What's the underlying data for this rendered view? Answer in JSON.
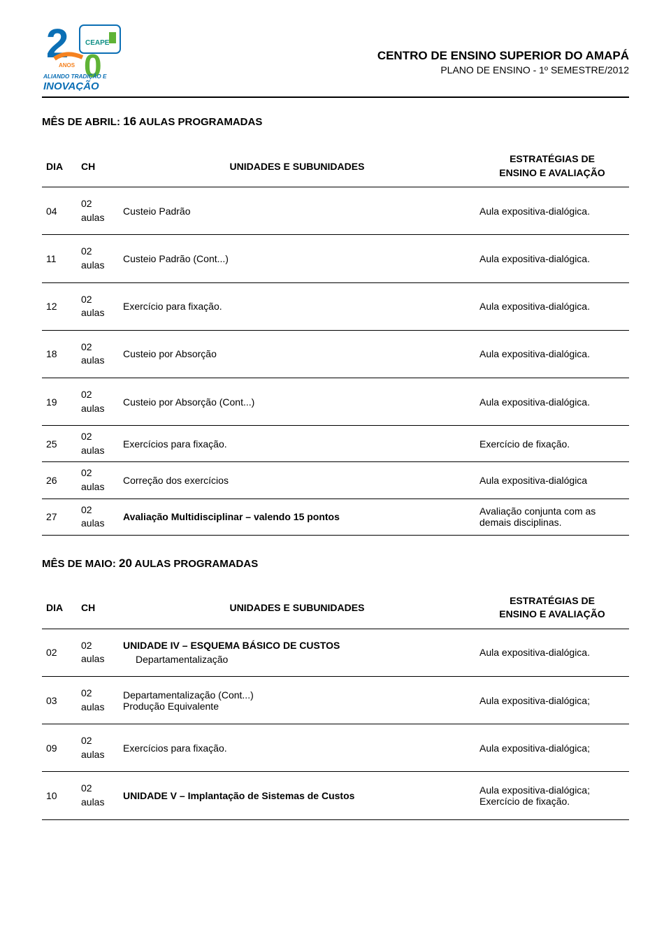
{
  "header": {
    "institution": "CENTRO DE ENSINO SUPERIOR DO AMAPÁ",
    "subtitle": "PLANO DE ENSINO - 1º SEMESTRE/2012"
  },
  "logo": {
    "top_number": "2",
    "right_number": "0",
    "ceape": "CEAPE",
    "years": "ANOS",
    "line1": "ALIANDO TRADIÇÃO E",
    "line2": "INOVAÇÃO",
    "colors": {
      "blue": "#0b6fb5",
      "green": "#5fb336",
      "orange": "#f58220",
      "teal": "#0f8f86",
      "border": "#0b6fb5"
    }
  },
  "section_april": {
    "prefix": "MÊS DE ABRIL: ",
    "num": "16",
    "suffix": " AULAS PROGRAMADAS"
  },
  "section_may": {
    "prefix": "MÊS DE MAIO: ",
    "num": "20",
    "suffix": " AULAS PROGRAMADAS"
  },
  "table_headers": {
    "dia": "DIA",
    "ch": "CH",
    "unit": "UNIDADES E SUBUNIDADES",
    "strat_l1": "ESTRATÉGIAS DE",
    "strat_l2": "ENSINO E AVALIAÇÃO"
  },
  "april_rows": [
    {
      "dia": "04",
      "ch1": "02",
      "ch2": "aulas",
      "unit": "Custeio Padrão",
      "strat": "Aula expositiva-dialógica.",
      "compact": false
    },
    {
      "dia": "11",
      "ch1": "02",
      "ch2": "aulas",
      "unit": "Custeio Padrão (Cont...)",
      "strat": "Aula expositiva-dialógica.",
      "compact": false
    },
    {
      "dia": "12",
      "ch1": "02",
      "ch2": "aulas",
      "unit": "Exercício para fixação.",
      "strat": "Aula expositiva-dialógica.",
      "compact": false
    },
    {
      "dia": "18",
      "ch1": "02",
      "ch2": "aulas",
      "unit": "Custeio por Absorção",
      "strat": "Aula expositiva-dialógica.",
      "compact": false
    },
    {
      "dia": "19",
      "ch1": "02",
      "ch2": "aulas",
      "unit": "Custeio por Absorção (Cont...)",
      "strat": "Aula expositiva-dialógica.",
      "compact": false
    },
    {
      "dia": "25",
      "ch1": "02",
      "ch2": "aulas",
      "unit": "Exercícios para fixação.",
      "strat": "Exercício de fixação.",
      "compact": true
    },
    {
      "dia": "26",
      "ch1": "02",
      "ch2": "aulas",
      "unit": "Correção dos exercícios",
      "strat": "Aula expositiva-dialógica",
      "compact": true
    },
    {
      "dia": "27",
      "ch1": "02",
      "ch2": "aulas",
      "unit": "Avaliação Multidisciplinar – valendo 15 pontos",
      "unit_bold": true,
      "strat": "Avaliação conjunta com as demais disciplinas.",
      "compact": true
    }
  ],
  "may_rows": [
    {
      "dia": "02",
      "ch1": "02",
      "ch2": "aulas",
      "unit_line1": "UNIDADE IV – ESQUEMA BÁSICO DE CUSTOS",
      "unit_line1_bold": true,
      "unit_line2": "Departamentalização",
      "unit_line2_indent": true,
      "strat": "Aula expositiva-dialógica."
    },
    {
      "dia": "03",
      "ch1": "02",
      "ch2": "aulas",
      "unit_line1": "Departamentalização (Cont...)",
      "unit_line2": "Produção Equivalente",
      "strat": "Aula expositiva-dialógica;"
    },
    {
      "dia": "09",
      "ch1": "02",
      "ch2": "aulas",
      "unit_line1": "Exercícios para fixação.",
      "strat": "Aula expositiva-dialógica;"
    },
    {
      "dia": "10",
      "ch1": "02",
      "ch2": "aulas",
      "unit_line1": "UNIDADE V – Implantação de Sistemas de Custos",
      "unit_line1_bold": true,
      "strat": "Aula expositiva-dialógica; Exercício de fixação."
    }
  ]
}
